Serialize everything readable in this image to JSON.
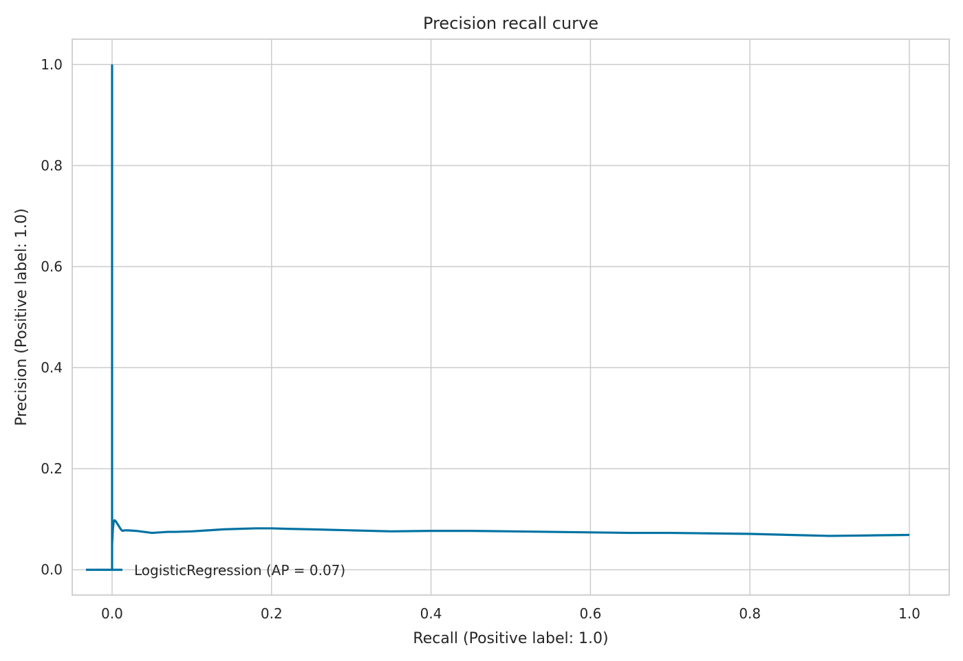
{
  "colors": {
    "series": "#0072A2",
    "grid": "#cccccc",
    "text": "#262626",
    "background": "#ffffff"
  },
  "chart_data": {
    "type": "line",
    "title": "Precision recall curve",
    "xlabel": "Recall (Positive label: 1.0)",
    "ylabel": "Precision (Positive label: 1.0)",
    "xlim": [
      -0.05,
      1.05
    ],
    "ylim": [
      -0.05,
      1.05
    ],
    "xticks": [
      0.0,
      0.2,
      0.4,
      0.6,
      0.8,
      1.0
    ],
    "yticks": [
      0.0,
      0.2,
      0.4,
      0.6,
      0.8,
      1.0
    ],
    "xtick_labels": [
      "0.0",
      "0.2",
      "0.4",
      "0.6",
      "0.8",
      "1.0"
    ],
    "ytick_labels": [
      "0.0",
      "0.2",
      "0.4",
      "0.6",
      "0.8",
      "1.0"
    ],
    "grid": true,
    "legend_position": "lower-left",
    "series": [
      {
        "name": "LogisticRegression (AP = 0.07)",
        "x": [
          0.0,
          0.0,
          0.0,
          0.001,
          0.002,
          0.003,
          0.004,
          0.005,
          0.007,
          0.009,
          0.011,
          0.013,
          0.016,
          0.02,
          0.03,
          0.04,
          0.05,
          0.06,
          0.07,
          0.08,
          0.1,
          0.12,
          0.14,
          0.16,
          0.18,
          0.2,
          0.22,
          0.25,
          0.3,
          0.35,
          0.4,
          0.45,
          0.5,
          0.55,
          0.6,
          0.65,
          0.7,
          0.75,
          0.8,
          0.85,
          0.9,
          0.95,
          1.0
        ],
        "y": [
          1.0,
          0.0,
          0.05,
          0.08,
          0.095,
          0.098,
          0.097,
          0.095,
          0.09,
          0.085,
          0.08,
          0.077,
          0.078,
          0.078,
          0.077,
          0.075,
          0.073,
          0.074,
          0.075,
          0.075,
          0.076,
          0.078,
          0.08,
          0.081,
          0.082,
          0.082,
          0.081,
          0.08,
          0.078,
          0.076,
          0.077,
          0.077,
          0.076,
          0.075,
          0.074,
          0.073,
          0.073,
          0.072,
          0.071,
          0.069,
          0.067,
          0.068,
          0.069
        ]
      }
    ]
  }
}
